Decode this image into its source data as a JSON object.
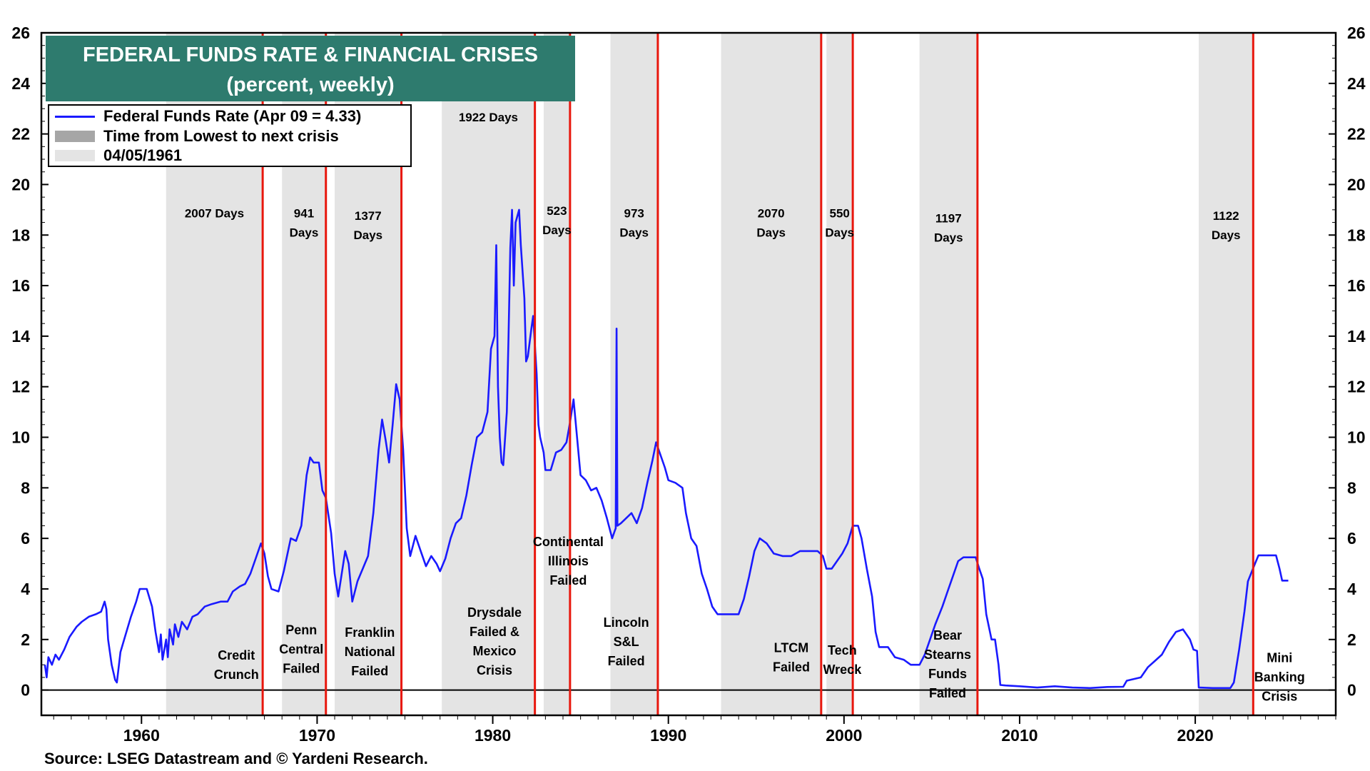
{
  "chart_data": {
    "type": "line",
    "title": "FEDERAL FUNDS RATE & FINANCIAL CRISES",
    "subtitle": "(percent, weekly)",
    "source": "Source: LSEG Datastream and © Yardeni Research.",
    "xlim": [
      1954.3,
      2028.0
    ],
    "ylim": [
      -1,
      26
    ],
    "yticks": [
      0,
      2,
      4,
      6,
      8,
      10,
      12,
      14,
      16,
      18,
      20,
      22,
      24,
      26
    ],
    "xticks": [
      1960,
      1970,
      1980,
      1990,
      2000,
      2010,
      2020
    ],
    "grid": false,
    "legend_position": "top-left",
    "legend": {
      "series": "Federal Funds Rate (Apr 09 = 4.33)",
      "dark": "Time from Lowest to next crisis",
      "light": "04/05/1961"
    },
    "colors": {
      "series": "#1a1aff",
      "crisis_line": "#e8170d",
      "shade": "#e4e4e4",
      "title_bg": "#2e7b6e"
    },
    "shaded_periods": [
      {
        "start": 1961.4,
        "end": 1966.9,
        "days_lines": [
          "2007 Days"
        ],
        "days_y": 18.7
      },
      {
        "start": 1968.0,
        "end": 1970.5,
        "days_lines": [
          "941",
          "Days"
        ],
        "days_y": 18.7
      },
      {
        "start": 1971.0,
        "end": 1974.8,
        "days_lines": [
          "1377",
          "Days"
        ],
        "days_y": 18.6
      },
      {
        "start": 1977.1,
        "end": 1982.4,
        "days_lines": [
          "1922 Days"
        ],
        "days_y": 22.5
      },
      {
        "start": 1982.9,
        "end": 1984.4,
        "days_lines": [
          "523",
          "Days"
        ],
        "days_y": 18.8
      },
      {
        "start": 1986.7,
        "end": 1989.4,
        "days_lines": [
          "973",
          "Days"
        ],
        "days_y": 18.7
      },
      {
        "start": 1993.0,
        "end": 1998.7,
        "days_lines": [
          "2070",
          "Days"
        ],
        "days_y": 18.7
      },
      {
        "start": 1999.0,
        "end": 2000.5,
        "days_lines": [
          "550",
          "Days"
        ],
        "days_y": 18.7
      },
      {
        "start": 2004.3,
        "end": 2007.6,
        "days_lines": [
          "1197",
          "Days"
        ],
        "days_y": 18.5
      },
      {
        "start": 2020.2,
        "end": 2023.3,
        "days_lines": [
          "1122",
          "Days"
        ],
        "days_y": 18.6
      }
    ],
    "crises": [
      {
        "date": 1966.9,
        "label_lines": [
          "Credit",
          "Crunch"
        ],
        "label_x": 1965.4,
        "label_y": 1.2
      },
      {
        "date": 1970.5,
        "label_lines": [
          "Penn",
          "Central",
          "Failed"
        ],
        "label_x": 1969.1,
        "label_y": 2.2
      },
      {
        "date": 1974.8,
        "label_lines": [
          "Franklin",
          "National",
          "Failed"
        ],
        "label_x": 1973.0,
        "label_y": 2.1
      },
      {
        "date": 1982.4,
        "label_lines": [
          "Drysdale",
          "Failed &",
          "Mexico",
          "Crisis"
        ],
        "label_x": 1980.1,
        "label_y": 2.9
      },
      {
        "date": 1984.4,
        "label_lines": [
          "Continental",
          "Illinois",
          "Failed"
        ],
        "label_x": 1984.3,
        "label_y": 5.7
      },
      {
        "date": 1989.4,
        "label_lines": [
          "Lincoln",
          "S&L",
          "Failed"
        ],
        "label_x": 1987.6,
        "label_y": 2.5
      },
      {
        "date": 1998.7,
        "label_lines": [
          "LTCM",
          "Failed"
        ],
        "label_x": 1997.0,
        "label_y": 1.5
      },
      {
        "date": 2000.5,
        "label_lines": [
          "Tech",
          "Wreck"
        ],
        "label_x": 1999.9,
        "label_y": 1.4
      },
      {
        "date": 2007.6,
        "label_lines": [
          "Bear",
          "Stearns",
          "Funds",
          "Failed"
        ],
        "label_x": 2005.9,
        "label_y": 2.0
      },
      {
        "date": 2023.3,
        "label_lines": [
          "Mini",
          "Banking",
          "Crisis"
        ],
        "label_x": 2024.8,
        "label_y": 1.1
      }
    ],
    "series": [
      {
        "name": "Federal Funds Rate (Apr 09 = 4.33)",
        "points": [
          [
            1954.5,
            1.0
          ],
          [
            1954.6,
            0.5
          ],
          [
            1954.7,
            1.3
          ],
          [
            1954.9,
            1.0
          ],
          [
            1955.1,
            1.4
          ],
          [
            1955.3,
            1.2
          ],
          [
            1955.6,
            1.6
          ],
          [
            1955.9,
            2.1
          ],
          [
            1956.3,
            2.5
          ],
          [
            1956.6,
            2.7
          ],
          [
            1957.0,
            2.9
          ],
          [
            1957.4,
            3.0
          ],
          [
            1957.7,
            3.1
          ],
          [
            1957.9,
            3.5
          ],
          [
            1958.0,
            3.2
          ],
          [
            1958.1,
            2.0
          ],
          [
            1958.3,
            1.0
          ],
          [
            1958.5,
            0.4
          ],
          [
            1958.6,
            0.3
          ],
          [
            1958.8,
            1.5
          ],
          [
            1959.1,
            2.2
          ],
          [
            1959.4,
            2.9
          ],
          [
            1959.7,
            3.5
          ],
          [
            1959.9,
            4.0
          ],
          [
            1960.3,
            4.0
          ],
          [
            1960.6,
            3.3
          ],
          [
            1960.8,
            2.3
          ],
          [
            1961.0,
            1.5
          ],
          [
            1961.1,
            2.2
          ],
          [
            1961.2,
            1.2
          ],
          [
            1961.4,
            2.0
          ],
          [
            1961.5,
            1.3
          ],
          [
            1961.6,
            2.4
          ],
          [
            1961.8,
            1.8
          ],
          [
            1961.9,
            2.6
          ],
          [
            1962.1,
            2.1
          ],
          [
            1962.3,
            2.7
          ],
          [
            1962.6,
            2.4
          ],
          [
            1962.9,
            2.9
          ],
          [
            1963.2,
            3.0
          ],
          [
            1963.6,
            3.3
          ],
          [
            1964.0,
            3.4
          ],
          [
            1964.5,
            3.5
          ],
          [
            1964.9,
            3.5
          ],
          [
            1965.2,
            3.9
          ],
          [
            1965.6,
            4.1
          ],
          [
            1965.9,
            4.2
          ],
          [
            1966.2,
            4.6
          ],
          [
            1966.5,
            5.2
          ],
          [
            1966.8,
            5.8
          ],
          [
            1967.0,
            5.4
          ],
          [
            1967.2,
            4.5
          ],
          [
            1967.4,
            4.0
          ],
          [
            1967.8,
            3.9
          ],
          [
            1968.1,
            4.7
          ],
          [
            1968.5,
            6.0
          ],
          [
            1968.8,
            5.9
          ],
          [
            1969.1,
            6.5
          ],
          [
            1969.4,
            8.5
          ],
          [
            1969.6,
            9.2
          ],
          [
            1969.8,
            9.0
          ],
          [
            1970.1,
            9.0
          ],
          [
            1970.3,
            7.9
          ],
          [
            1970.5,
            7.6
          ],
          [
            1970.8,
            6.2
          ],
          [
            1971.0,
            4.6
          ],
          [
            1971.2,
            3.7
          ],
          [
            1971.4,
            4.6
          ],
          [
            1971.6,
            5.5
          ],
          [
            1971.8,
            5.0
          ],
          [
            1972.0,
            3.5
          ],
          [
            1972.3,
            4.3
          ],
          [
            1972.6,
            4.8
          ],
          [
            1972.9,
            5.3
          ],
          [
            1973.2,
            7.0
          ],
          [
            1973.5,
            9.5
          ],
          [
            1973.7,
            10.7
          ],
          [
            1973.9,
            9.9
          ],
          [
            1974.1,
            9.0
          ],
          [
            1974.3,
            10.5
          ],
          [
            1974.5,
            12.1
          ],
          [
            1974.7,
            11.5
          ],
          [
            1974.9,
            9.5
          ],
          [
            1975.1,
            6.4
          ],
          [
            1975.3,
            5.3
          ],
          [
            1975.6,
            6.1
          ],
          [
            1975.9,
            5.5
          ],
          [
            1976.2,
            4.9
          ],
          [
            1976.5,
            5.3
          ],
          [
            1976.8,
            5.0
          ],
          [
            1977.0,
            4.7
          ],
          [
            1977.3,
            5.2
          ],
          [
            1977.6,
            6.0
          ],
          [
            1977.9,
            6.6
          ],
          [
            1978.2,
            6.8
          ],
          [
            1978.5,
            7.7
          ],
          [
            1978.8,
            8.9
          ],
          [
            1979.1,
            10.0
          ],
          [
            1979.4,
            10.2
          ],
          [
            1979.7,
            11.0
          ],
          [
            1979.9,
            13.5
          ],
          [
            1980.1,
            14.0
          ],
          [
            1980.2,
            17.6
          ],
          [
            1980.3,
            12.0
          ],
          [
            1980.4,
            10.0
          ],
          [
            1980.5,
            9.0
          ],
          [
            1980.6,
            8.9
          ],
          [
            1980.8,
            11.0
          ],
          [
            1980.9,
            14.0
          ],
          [
            1981.0,
            17.5
          ],
          [
            1981.1,
            19.0
          ],
          [
            1981.2,
            16.0
          ],
          [
            1981.3,
            18.5
          ],
          [
            1981.5,
            19.0
          ],
          [
            1981.6,
            17.6
          ],
          [
            1981.8,
            15.5
          ],
          [
            1981.9,
            13.0
          ],
          [
            1982.0,
            13.2
          ],
          [
            1982.2,
            14.3
          ],
          [
            1982.3,
            14.8
          ],
          [
            1982.5,
            12.5
          ],
          [
            1982.6,
            10.5
          ],
          [
            1982.7,
            10.0
          ],
          [
            1982.9,
            9.4
          ],
          [
            1983.0,
            8.7
          ],
          [
            1983.3,
            8.7
          ],
          [
            1983.6,
            9.4
          ],
          [
            1983.9,
            9.5
          ],
          [
            1984.2,
            9.8
          ],
          [
            1984.4,
            10.6
          ],
          [
            1984.6,
            11.5
          ],
          [
            1984.8,
            10.0
          ],
          [
            1985.0,
            8.5
          ],
          [
            1985.3,
            8.3
          ],
          [
            1985.6,
            7.9
          ],
          [
            1985.9,
            8.0
          ],
          [
            1986.2,
            7.5
          ],
          [
            1986.5,
            6.8
          ],
          [
            1986.8,
            6.0
          ],
          [
            1986.95,
            6.3
          ],
          [
            1987.0,
            6.4
          ],
          [
            1987.05,
            14.3
          ],
          [
            1987.1,
            6.5
          ],
          [
            1987.3,
            6.6
          ],
          [
            1987.6,
            6.8
          ],
          [
            1987.9,
            7.0
          ],
          [
            1988.2,
            6.6
          ],
          [
            1988.5,
            7.2
          ],
          [
            1988.8,
            8.2
          ],
          [
            1989.1,
            9.1
          ],
          [
            1989.3,
            9.8
          ],
          [
            1989.5,
            9.4
          ],
          [
            1989.8,
            8.8
          ],
          [
            1990.0,
            8.3
          ],
          [
            1990.4,
            8.2
          ],
          [
            1990.8,
            8.0
          ],
          [
            1991.0,
            7.0
          ],
          [
            1991.3,
            6.0
          ],
          [
            1991.6,
            5.7
          ],
          [
            1991.9,
            4.6
          ],
          [
            1992.2,
            4.0
          ],
          [
            1992.5,
            3.3
          ],
          [
            1992.8,
            3.0
          ],
          [
            1993.2,
            3.0
          ],
          [
            1993.6,
            3.0
          ],
          [
            1994.0,
            3.0
          ],
          [
            1994.3,
            3.6
          ],
          [
            1994.6,
            4.5
          ],
          [
            1994.9,
            5.5
          ],
          [
            1995.2,
            6.0
          ],
          [
            1995.6,
            5.8
          ],
          [
            1996.0,
            5.4
          ],
          [
            1996.5,
            5.3
          ],
          [
            1997.0,
            5.3
          ],
          [
            1997.5,
            5.5
          ],
          [
            1998.0,
            5.5
          ],
          [
            1998.5,
            5.5
          ],
          [
            1998.8,
            5.3
          ],
          [
            1999.0,
            4.8
          ],
          [
            1999.3,
            4.8
          ],
          [
            1999.6,
            5.1
          ],
          [
            1999.9,
            5.4
          ],
          [
            2000.2,
            5.8
          ],
          [
            2000.5,
            6.5
          ],
          [
            2000.8,
            6.5
          ],
          [
            2001.0,
            6.0
          ],
          [
            2001.3,
            4.8
          ],
          [
            2001.6,
            3.7
          ],
          [
            2001.8,
            2.3
          ],
          [
            2002.0,
            1.7
          ],
          [
            2002.5,
            1.7
          ],
          [
            2002.9,
            1.3
          ],
          [
            2003.4,
            1.2
          ],
          [
            2003.8,
            1.0
          ],
          [
            2004.3,
            1.0
          ],
          [
            2004.6,
            1.4
          ],
          [
            2004.9,
            2.0
          ],
          [
            2005.2,
            2.6
          ],
          [
            2005.6,
            3.3
          ],
          [
            2005.9,
            3.9
          ],
          [
            2006.2,
            4.5
          ],
          [
            2006.5,
            5.1
          ],
          [
            2006.8,
            5.25
          ],
          [
            2007.2,
            5.25
          ],
          [
            2007.5,
            5.25
          ],
          [
            2007.7,
            4.8
          ],
          [
            2007.9,
            4.4
          ],
          [
            2008.1,
            3.0
          ],
          [
            2008.4,
            2.0
          ],
          [
            2008.6,
            2.0
          ],
          [
            2008.8,
            1.0
          ],
          [
            2008.9,
            0.2
          ],
          [
            2009.2,
            0.18
          ],
          [
            2010.0,
            0.15
          ],
          [
            2011.0,
            0.1
          ],
          [
            2012.0,
            0.15
          ],
          [
            2013.0,
            0.1
          ],
          [
            2014.0,
            0.08
          ],
          [
            2015.0,
            0.12
          ],
          [
            2015.9,
            0.13
          ],
          [
            2016.1,
            0.37
          ],
          [
            2016.9,
            0.5
          ],
          [
            2017.3,
            0.9
          ],
          [
            2017.7,
            1.15
          ],
          [
            2018.1,
            1.4
          ],
          [
            2018.5,
            1.9
          ],
          [
            2018.9,
            2.3
          ],
          [
            2019.3,
            2.4
          ],
          [
            2019.7,
            2.0
          ],
          [
            2019.9,
            1.6
          ],
          [
            2020.1,
            1.55
          ],
          [
            2020.2,
            0.1
          ],
          [
            2021.0,
            0.08
          ],
          [
            2022.0,
            0.08
          ],
          [
            2022.2,
            0.3
          ],
          [
            2022.5,
            1.6
          ],
          [
            2022.8,
            3.1
          ],
          [
            2023.0,
            4.3
          ],
          [
            2023.4,
            5.0
          ],
          [
            2023.6,
            5.33
          ],
          [
            2024.6,
            5.33
          ],
          [
            2024.8,
            4.8
          ],
          [
            2024.95,
            4.33
          ],
          [
            2025.3,
            4.33
          ]
        ]
      }
    ]
  }
}
